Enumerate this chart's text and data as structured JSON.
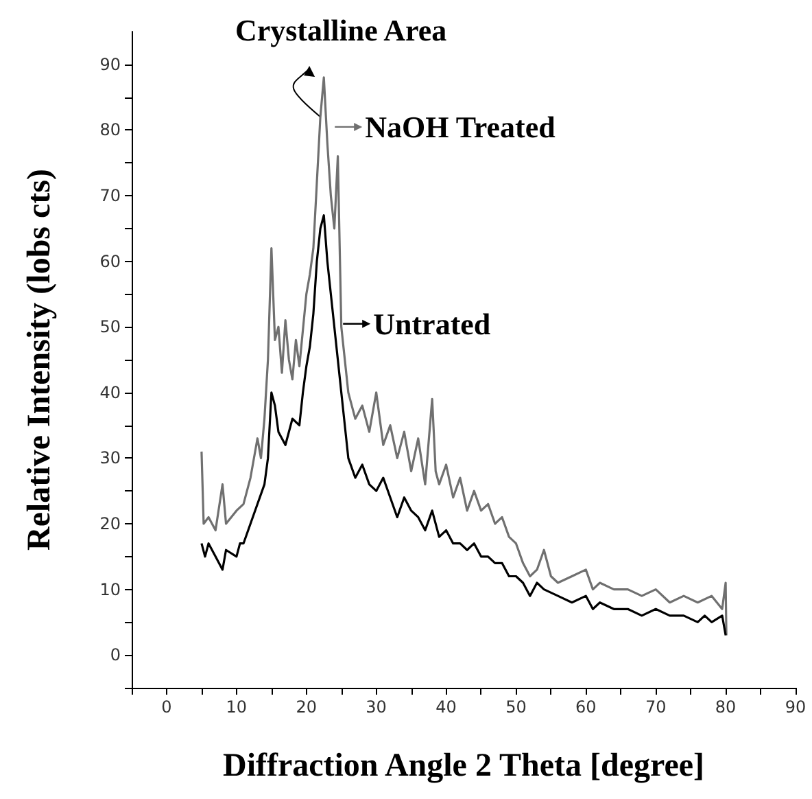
{
  "chart_data": {
    "type": "line",
    "xlabel": "Diffraction Angle 2 Theta [degree]",
    "ylabel": "Relative Intensity (lobs cts)",
    "annotations": [
      {
        "text": "Crystalline Area",
        "x": 22,
        "y": 82
      }
    ],
    "xlim": [
      -5,
      90
    ],
    "xticks": [
      {
        "value": -5,
        "label": null
      },
      0,
      {
        "value": 5,
        "label": null
      },
      10,
      {
        "value": 15,
        "label": null
      },
      20,
      {
        "value": 25,
        "label": null
      },
      30,
      {
        "value": 35,
        "label": null
      },
      40,
      {
        "value": 45,
        "label": null
      },
      50,
      {
        "value": 55,
        "label": null
      },
      60,
      {
        "value": 65,
        "label": null
      },
      70,
      {
        "value": 75,
        "label": null
      },
      80,
      {
        "value": 85,
        "label": null
      },
      90
    ],
    "ylim": [
      -5,
      95
    ],
    "yticks": [
      {
        "value": -5,
        "label": null
      },
      0,
      {
        "value": 5,
        "label": null
      },
      10,
      {
        "value": 15,
        "label": null
      },
      20,
      {
        "value": 25,
        "label": null
      },
      30,
      {
        "value": 35,
        "label": null
      },
      40,
      {
        "value": 45,
        "label": null
      },
      50,
      {
        "value": 55,
        "label": null
      },
      60,
      {
        "value": 65,
        "label": null
      },
      70,
      {
        "value": 75,
        "label": null
      },
      80,
      {
        "value": 85,
        "label": null
      },
      90
    ],
    "grid": false,
    "legend": "top",
    "marker": "none",
    "line_style": "solid",
    "series": [
      {
        "name": "NaOH Treated",
        "color": "#707070",
        "x": [
          5,
          5.3,
          6,
          7,
          8,
          8.5,
          10,
          11,
          12,
          13,
          13.5,
          14,
          14.5,
          15,
          15.5,
          16,
          16.5,
          17,
          17.5,
          18,
          18.5,
          19,
          20,
          20.5,
          21,
          21.5,
          22,
          22.5,
          23,
          23.5,
          24,
          24.5,
          25,
          25.5,
          26,
          27,
          28,
          29,
          30,
          31,
          32,
          33,
          34,
          35,
          36,
          37,
          38,
          38.5,
          39,
          40,
          41,
          42,
          43,
          44,
          45,
          46,
          47,
          48,
          49,
          50,
          51,
          52,
          53,
          54,
          55,
          56,
          58,
          60,
          61,
          62,
          64,
          66,
          68,
          70,
          72,
          74,
          76,
          78,
          79.5,
          80,
          80.1
        ],
        "values": [
          31,
          20,
          21,
          19,
          26,
          20,
          22,
          23,
          27,
          33,
          30,
          36,
          45,
          62,
          48,
          50,
          43,
          51,
          45,
          42,
          48,
          44,
          55,
          58,
          62,
          72,
          82,
          88,
          78,
          70,
          65,
          76,
          50,
          45,
          40,
          36,
          38,
          34,
          40,
          32,
          35,
          30,
          34,
          28,
          33,
          26,
          39,
          28,
          26,
          29,
          24,
          27,
          22,
          25,
          22,
          23,
          20,
          21,
          18,
          17,
          14,
          12,
          13,
          16,
          12,
          11,
          12,
          13,
          10,
          11,
          10,
          10,
          9,
          10,
          8,
          9,
          8,
          9,
          7,
          11,
          3
        ]
      },
      {
        "name": "Untrated",
        "color": "#000000",
        "x": [
          5,
          5.5,
          6,
          7,
          8,
          8.5,
          10,
          10.5,
          11,
          12,
          13,
          14,
          14.5,
          15,
          15.5,
          16,
          17,
          18,
          19,
          19.5,
          20,
          20.5,
          21,
          21.5,
          22,
          22.5,
          23,
          23.5,
          24,
          25,
          25.5,
          26,
          27,
          28,
          29,
          30,
          31,
          32,
          33,
          34,
          35,
          36,
          37,
          38,
          39,
          40,
          41,
          42,
          43,
          44,
          45,
          46,
          47,
          48,
          49,
          50,
          51,
          52,
          53,
          54,
          56,
          58,
          60,
          61,
          62,
          64,
          66,
          68,
          70,
          72,
          74,
          76,
          77,
          78,
          79.5,
          80
        ],
        "values": [
          17,
          15,
          17,
          15,
          13,
          16,
          15,
          17,
          17,
          20,
          23,
          26,
          30,
          40,
          38,
          34,
          32,
          36,
          35,
          40,
          44,
          47,
          52,
          60,
          65,
          67,
          60,
          55,
          50,
          40,
          35,
          30,
          27,
          29,
          26,
          25,
          27,
          24,
          21,
          24,
          22,
          21,
          19,
          22,
          18,
          19,
          17,
          17,
          16,
          17,
          15,
          15,
          14,
          14,
          12,
          12,
          11,
          9,
          11,
          10,
          9,
          8,
          9,
          7,
          8,
          7,
          7,
          6,
          7,
          6,
          6,
          5,
          6,
          5,
          6,
          3
        ]
      }
    ]
  }
}
